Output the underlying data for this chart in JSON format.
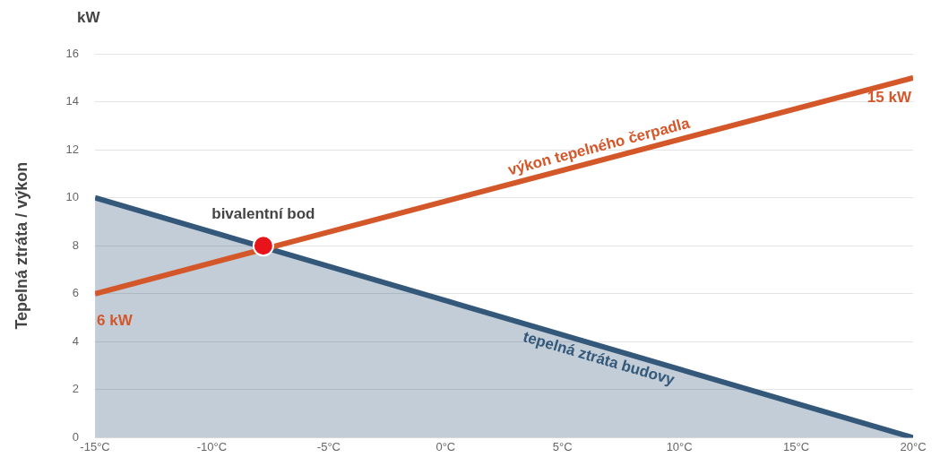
{
  "chart_data": {
    "type": "line",
    "ylabel": "Tepelná ztráta / výkon",
    "annotations": [
      "kW",
      {
        "text": "bivalentní bod",
        "x": -7.8,
        "y": 8
      },
      {
        "text": "6 kW",
        "x": -15,
        "y": 6
      },
      {
        "text": "15 kW",
        "x": 20,
        "y": 15
      }
    ],
    "xlim": [
      -15,
      20
    ],
    "xticks": [
      {
        "value": -15,
        "label": "-15°C"
      },
      {
        "value": -10,
        "label": "-10°C"
      },
      {
        "value": -5,
        "label": "-5°C"
      },
      {
        "value": 0,
        "label": "0°C"
      },
      {
        "value": 5,
        "label": "5°C"
      },
      {
        "value": 10,
        "label": "10°C"
      },
      {
        "value": 15,
        "label": "15°C"
      },
      {
        "value": 20,
        "label": "20°C"
      }
    ],
    "ylim": [
      0,
      16
    ],
    "yticks": [
      0,
      2,
      4,
      6,
      8,
      10,
      12,
      14,
      16
    ],
    "grid": "y",
    "legend": false,
    "series": [
      {
        "name": "tepelná ztráta budovy",
        "type": "area",
        "color": "#34587a",
        "x": [
          -15,
          20
        ],
        "values": [
          10,
          0
        ]
      },
      {
        "name": "výkon tepelného čerpadla",
        "type": "line",
        "color": "#d4572a",
        "x": [
          -15,
          20
        ],
        "values": [
          6,
          15
        ]
      },
      {
        "type": "scatter",
        "color": "#e8141c",
        "x": [
          -7.8
        ],
        "values": [
          8
        ]
      }
    ]
  }
}
